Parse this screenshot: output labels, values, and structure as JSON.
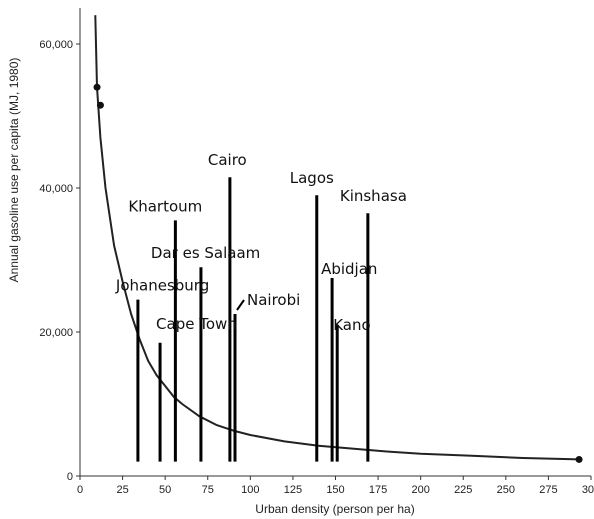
{
  "chart_data": {
    "type": "line",
    "title": "",
    "xlabel": "Urban density (person per ha)",
    "ylabel": "Annual gasoline use per capita (MJ, 1980)",
    "xlim": [
      0,
      300
    ],
    "ylim": [
      0,
      65000
    ],
    "x_ticks": [
      0,
      25,
      50,
      75,
      100,
      125,
      150,
      175,
      200,
      225,
      250,
      275,
      300
    ],
    "x_tick_labels": [
      "0",
      "25",
      "50",
      "75",
      "100",
      "125",
      "150",
      "175",
      "200",
      "225",
      "250",
      "275",
      "300"
    ],
    "y_ticks": [
      0,
      20000,
      40000,
      60000
    ],
    "y_tick_labels": [
      "0",
      "20,000",
      "40,000",
      "60,000"
    ],
    "grid": false,
    "curve": {
      "x": [
        9,
        10,
        12,
        15,
        20,
        25,
        30,
        35,
        40,
        45,
        50,
        55,
        60,
        70,
        80,
        90,
        100,
        120,
        140,
        160,
        180,
        200,
        230,
        260,
        293
      ],
      "y": [
        64000,
        54000,
        47000,
        40000,
        32000,
        27000,
        22500,
        19000,
        16000,
        14000,
        12500,
        11000,
        10000,
        8300,
        7100,
        6300,
        5700,
        4800,
        4200,
        3800,
        3400,
        3100,
        2800,
        2500,
        2300
      ]
    },
    "points": [
      {
        "x": 10,
        "y": 54000
      },
      {
        "x": 12,
        "y": 51500
      },
      {
        "x": 293,
        "y": 2300
      }
    ],
    "cities": [
      {
        "name": "Johanesburg",
        "x": 34,
        "y": 24500
      },
      {
        "name": "Cape Town",
        "x": 47,
        "y": 18500
      },
      {
        "name": "Khartoum",
        "x": 56,
        "y": 35500
      },
      {
        "name": "Dar es Salaam",
        "x": 71,
        "y": 29000
      },
      {
        "name": "Cairo",
        "x": 88,
        "y": 41500
      },
      {
        "name": "Nairobi",
        "x": 91,
        "y": 22500
      },
      {
        "name": "Lagos",
        "x": 139,
        "y": 39000
      },
      {
        "name": "Abidjan",
        "x": 148,
        "y": 27500
      },
      {
        "name": "Kano",
        "x": 151,
        "y": 21000
      },
      {
        "name": "Kinshasa",
        "x": 169,
        "y": 36500
      }
    ]
  }
}
